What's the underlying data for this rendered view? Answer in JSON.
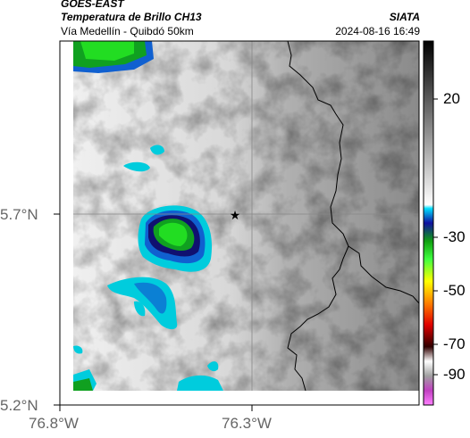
{
  "header": {
    "satellite": "GOES-EAST",
    "product": "Temperatura de Brillo CH13",
    "route": "Vía Medellín - Quibdó 50km",
    "org": "SIATA",
    "datetime": "2024-08-16 16:49"
  },
  "axes": {
    "lat_ticks": [
      "5.7°N",
      "5.2°N"
    ],
    "lon_ticks": [
      "76.8°W",
      "76.3°W"
    ]
  },
  "colorbar": {
    "ticks": [
      "20",
      "-30",
      "-50",
      "-70",
      "-90"
    ]
  },
  "marker": {
    "icon": "star-icon"
  },
  "colors": {
    "grid": "#888888",
    "border": "#000000",
    "cloud_green": "#22dd22",
    "cloud_cyan": "#00ccdd",
    "cloud_blue": "#1060d0",
    "cloud_navy": "#101070"
  }
}
